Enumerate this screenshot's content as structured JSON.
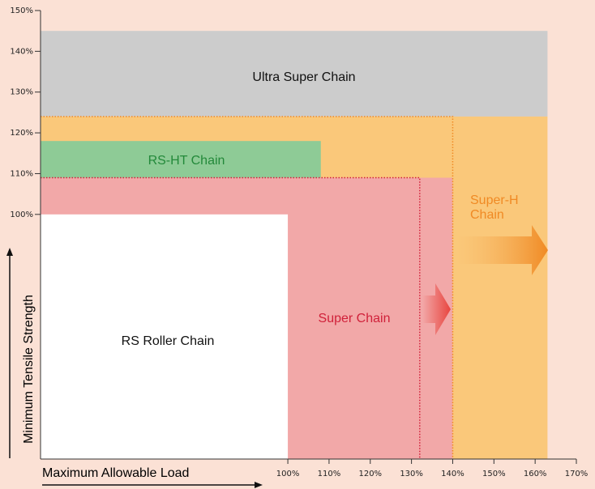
{
  "chart_data": {
    "type": "region",
    "x_label": "Maximum Allowable Load",
    "y_label": "Minimum Tensile Strength",
    "xlim": [
      40,
      170
    ],
    "ylim": [
      40,
      150
    ],
    "xticks": [
      {
        "value": 100,
        "label": "100%"
      },
      {
        "value": 110,
        "label": "110%"
      },
      {
        "value": 120,
        "label": "120%"
      },
      {
        "value": 130,
        "label": "130%"
      },
      {
        "value": 140,
        "label": "140%"
      },
      {
        "value": 150,
        "label": "150%"
      },
      {
        "value": 160,
        "label": "160%"
      },
      {
        "value": 170,
        "label": "170%"
      }
    ],
    "yticks": [
      {
        "value": 100,
        "label": "100%"
      },
      {
        "value": 110,
        "label": "110%"
      },
      {
        "value": 120,
        "label": "120%"
      },
      {
        "value": 130,
        "label": "130%"
      },
      {
        "value": 140,
        "label": "140%"
      },
      {
        "value": 150,
        "label": "150%"
      }
    ],
    "regions": [
      {
        "name": "Ultra Super Chain",
        "color": "#cccccc",
        "label_color": "#111111",
        "x": [
          40,
          163
        ],
        "y": [
          124,
          145
        ]
      },
      {
        "name": [
          "Super-H",
          "Chain"
        ],
        "color": "#fac87a",
        "label_color": "#f08a24",
        "x": [
          40,
          163
        ],
        "y": [
          40,
          124
        ]
      },
      {
        "name": "RS-HT Chain",
        "color": "#8ecb96",
        "label_color": "#23893a",
        "x": [
          40,
          108
        ],
        "y": [
          109,
          118
        ]
      },
      {
        "name": "Super Chain",
        "color": "#f2a8a8",
        "label_color": "#d0213a",
        "x": [
          40,
          140
        ],
        "y": [
          40,
          109
        ]
      },
      {
        "name": "RS Roller Chain",
        "color": "#ffffff",
        "label_color": "#111111",
        "x": [
          40,
          100
        ],
        "y": [
          40,
          100
        ]
      }
    ],
    "guides": [
      {
        "color": "#f08a24",
        "x": [
          40,
          140,
          140
        ],
        "y": [
          124,
          124,
          40
        ]
      },
      {
        "color": "#d0213a",
        "x": [
          40,
          132,
          132
        ],
        "y": [
          109,
          109,
          40
        ]
      }
    ]
  }
}
